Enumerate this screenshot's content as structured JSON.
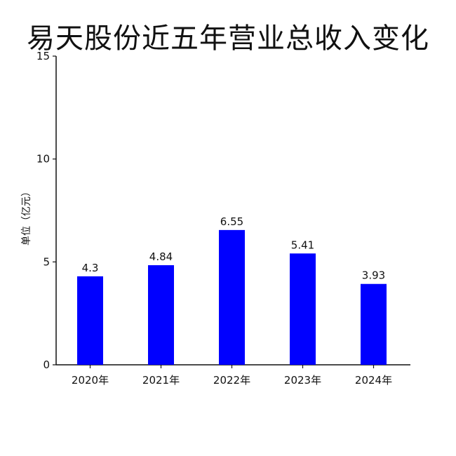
{
  "chart_data": {
    "type": "bar",
    "title": "易天股份近五年营业总收入变化",
    "xlabel": "",
    "ylabel": "单位（亿元）",
    "categories": [
      "2020年",
      "2021年",
      "2022年",
      "2023年",
      "2024年"
    ],
    "values": [
      4.3,
      4.84,
      6.55,
      5.41,
      3.93
    ],
    "value_labels": [
      "4.3",
      "4.84",
      "6.55",
      "5.41",
      "3.93"
    ],
    "ylim": [
      0,
      15
    ],
    "yticks": [
      0,
      5,
      10,
      15
    ],
    "ytick_labels": [
      "0",
      "5",
      "10",
      "15"
    ],
    "bar_color": "#0000ff",
    "grid": false,
    "legend": "none"
  }
}
